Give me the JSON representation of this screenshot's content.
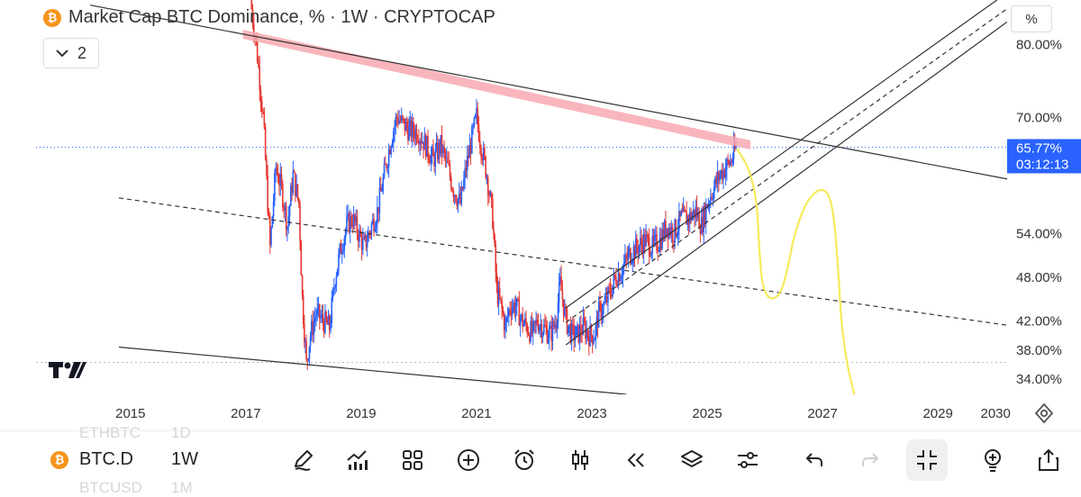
{
  "header": {
    "title": "Market Cap BTC Dominance, % · 1W · CRYPTOCAP",
    "collapse_count": "2",
    "unit_label": "%"
  },
  "price_label": {
    "value": "65.77%",
    "countdown": "03:12:13",
    "color": "#2962ff"
  },
  "colors": {
    "up": "#2962ff",
    "down": "#e53935",
    "resistance_band": "#f7a9b0",
    "projection": "#f5ea5a",
    "lines": "#333333"
  },
  "chart_data": {
    "type": "candlestick",
    "x_range": [
      2014.3,
      2030.2
    ],
    "y_range": [
      31.8,
      86.0
    ],
    "y_axis_labels": [
      "80.00%",
      "70.00%",
      "54.00%",
      "48.00%",
      "42.00%",
      "38.00%",
      "34.00%"
    ],
    "y_axis_values": [
      80,
      70,
      54,
      48,
      42,
      38,
      34
    ],
    "x_axis_labels": [
      "2015",
      "2017",
      "2019",
      "2021",
      "2023",
      "2025",
      "2027",
      "2029",
      "2030"
    ],
    "x_axis_values": [
      2015,
      2017,
      2019,
      2021,
      2023,
      2025,
      2027,
      2029,
      2030
    ],
    "current_value": 65.77,
    "price_path": [
      [
        2017.08,
        86
      ],
      [
        2017.18,
        80
      ],
      [
        2017.3,
        70
      ],
      [
        2017.42,
        52
      ],
      [
        2017.52,
        63
      ],
      [
        2017.62,
        60
      ],
      [
        2017.72,
        55
      ],
      [
        2017.82,
        62
      ],
      [
        2017.92,
        58
      ],
      [
        2017.98,
        45
      ],
      [
        2018.05,
        36
      ],
      [
        2018.12,
        40
      ],
      [
        2018.22,
        43
      ],
      [
        2018.32,
        42
      ],
      [
        2018.45,
        41
      ],
      [
        2018.55,
        48
      ],
      [
        2018.65,
        52
      ],
      [
        2018.75,
        55
      ],
      [
        2018.85,
        56
      ],
      [
        2018.95,
        54
      ],
      [
        2019.05,
        52
      ],
      [
        2019.18,
        55
      ],
      [
        2019.28,
        57
      ],
      [
        2019.4,
        62
      ],
      [
        2019.52,
        67
      ],
      [
        2019.62,
        70
      ],
      [
        2019.72,
        69
      ],
      [
        2019.85,
        68
      ],
      [
        2019.98,
        68
      ],
      [
        2020.12,
        66
      ],
      [
        2020.25,
        64
      ],
      [
        2020.38,
        66
      ],
      [
        2020.5,
        63
      ],
      [
        2020.6,
        60
      ],
      [
        2020.72,
        58
      ],
      [
        2020.82,
        63
      ],
      [
        2020.92,
        67
      ],
      [
        2021.0,
        70
      ],
      [
        2021.08,
        66
      ],
      [
        2021.18,
        62
      ],
      [
        2021.28,
        56
      ],
      [
        2021.35,
        46
      ],
      [
        2021.42,
        44
      ],
      [
        2021.5,
        41
      ],
      [
        2021.58,
        44
      ],
      [
        2021.68,
        44
      ],
      [
        2021.78,
        42
      ],
      [
        2021.88,
        41
      ],
      [
        2021.98,
        40
      ],
      [
        2022.05,
        42
      ],
      [
        2022.15,
        41
      ],
      [
        2022.28,
        40
      ],
      [
        2022.38,
        42
      ],
      [
        2022.45,
        47
      ],
      [
        2022.55,
        42
      ],
      [
        2022.65,
        40
      ],
      [
        2022.75,
        40
      ],
      [
        2022.85,
        41
      ],
      [
        2022.95,
        40
      ],
      [
        2023.05,
        40
      ],
      [
        2023.12,
        43
      ],
      [
        2023.22,
        44
      ],
      [
        2023.32,
        46
      ],
      [
        2023.42,
        48
      ],
      [
        2023.52,
        49
      ],
      [
        2023.65,
        51
      ],
      [
        2023.78,
        52
      ],
      [
        2023.92,
        53
      ],
      [
        2024.05,
        52
      ],
      [
        2024.18,
        53
      ],
      [
        2024.3,
        55
      ],
      [
        2024.42,
        54
      ],
      [
        2024.55,
        56
      ],
      [
        2024.68,
        56
      ],
      [
        2024.8,
        57
      ],
      [
        2024.9,
        55
      ],
      [
        2025.0,
        58
      ],
      [
        2025.1,
        60
      ],
      [
        2025.22,
        62
      ],
      [
        2025.32,
        63
      ],
      [
        2025.42,
        64
      ],
      [
        2025.5,
        65.77
      ]
    ],
    "drawings": {
      "upper_trendline": [
        [
          2014.3,
          85.3
        ],
        [
          2030.2,
          61.4
        ]
      ],
      "lower_trendline": [
        [
          2014.8,
          38.3
        ],
        [
          2023.6,
          31.8
        ]
      ],
      "mid_dashed_line": [
        [
          2014.8,
          58.8
        ],
        [
          2030.2,
          41.3
        ]
      ],
      "resistance_band": [
        [
          2016.95,
          81.3
        ],
        [
          2025.75,
          66.1
        ]
      ],
      "channel_upper": [
        [
          2022.55,
          43.7
        ],
        [
          2030.2,
          87.0
        ]
      ],
      "channel_mid_dashed": [
        [
          2022.55,
          41.7
        ],
        [
          2030.2,
          84.8
        ]
      ],
      "channel_lower": [
        [
          2022.55,
          38.6
        ],
        [
          2030.2,
          83.0
        ]
      ],
      "projection_path": [
        [
          2025.52,
          65.5
        ],
        [
          2025.72,
          63.0
        ],
        [
          2025.86,
          58.5
        ],
        [
          2025.9,
          52.0
        ],
        [
          2025.95,
          46.8
        ],
        [
          2026.08,
          44.7
        ],
        [
          2026.28,
          45.5
        ],
        [
          2026.42,
          50.0
        ],
        [
          2026.5,
          53.5
        ],
        [
          2026.72,
          58.5
        ],
        [
          2027.0,
          60.4
        ],
        [
          2027.18,
          58.2
        ],
        [
          2027.28,
          48.0
        ],
        [
          2027.32,
          42.0
        ],
        [
          2027.42,
          36.0
        ],
        [
          2027.55,
          31.8
        ]
      ]
    }
  },
  "toolbar": {
    "ghost_top_symbol": "ETHBTC",
    "ghost_top_interval": "1D",
    "ghost_bottom_symbol": "BTCUSD",
    "ghost_bottom_interval": "1M",
    "symbol": "BTC.D",
    "interval": "1W",
    "icons": [
      "pencil-icon",
      "chart-up-icon",
      "grid-icon",
      "plus-circle-icon",
      "alarm-icon",
      "candles-icon",
      "rewind-icon",
      "layers-icon",
      "sliders-icon",
      "undo-icon",
      "redo-icon",
      "collapse-icon",
      "lightbulb-plus-icon",
      "share-icon"
    ]
  }
}
